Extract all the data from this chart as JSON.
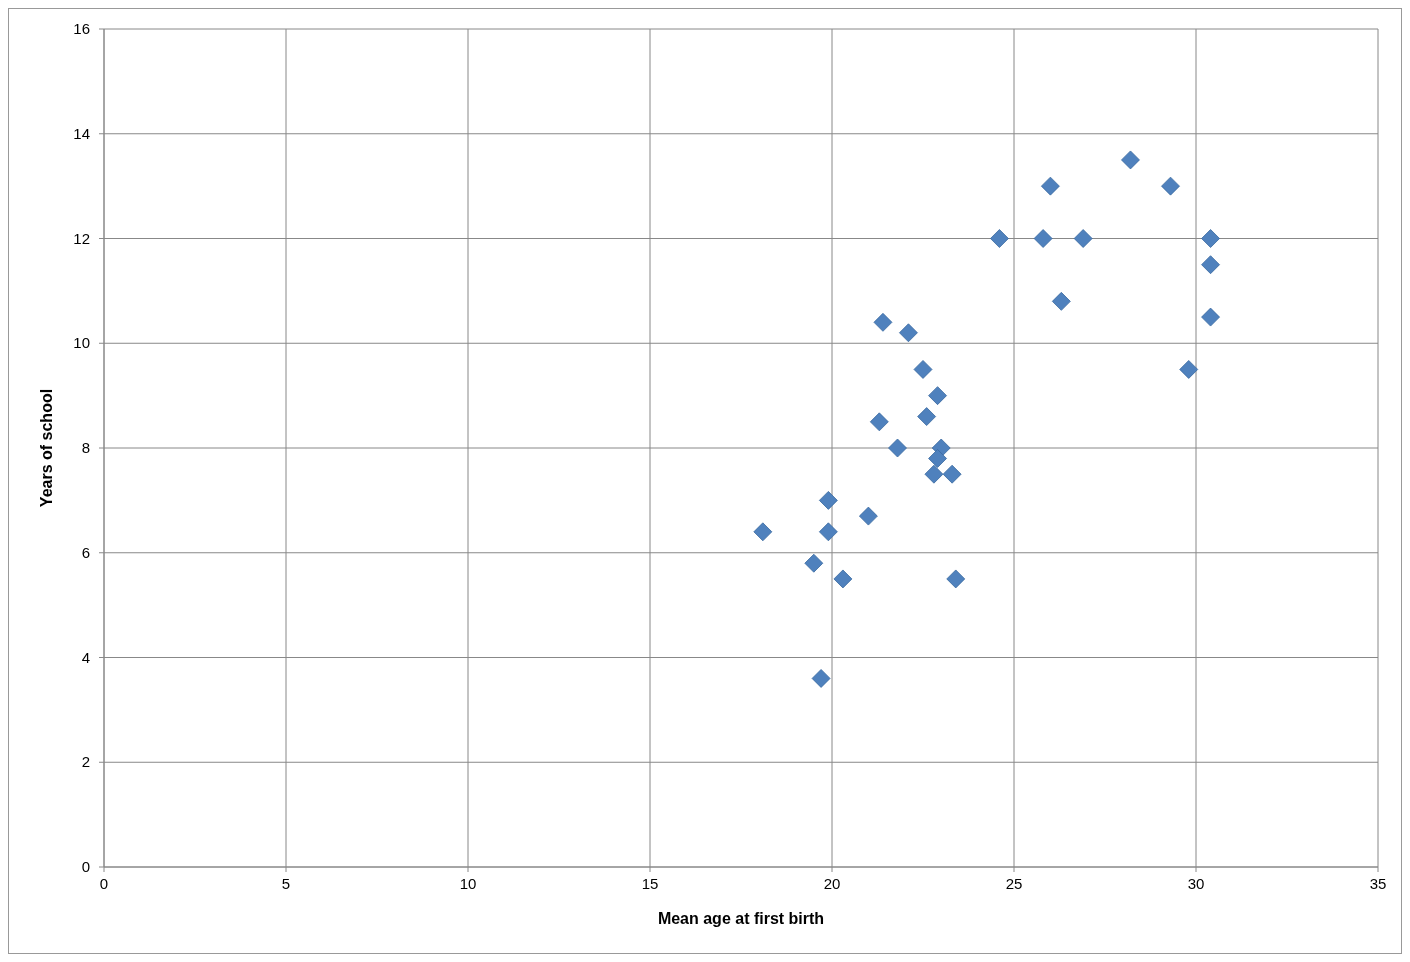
{
  "chart_data": {
    "type": "scatter",
    "xlabel": "Mean age at first birth",
    "ylabel": "Years of school",
    "x": [
      18.1,
      19.9,
      19.9,
      19.5,
      20.3,
      19.7,
      21.0,
      21.3,
      21.4,
      21.8,
      22.1,
      22.5,
      22.6,
      22.9,
      23.0,
      22.9,
      22.8,
      23.3,
      23.4,
      24.6,
      25.8,
      26.0,
      26.3,
      26.9,
      28.2,
      29.3,
      30.4,
      30.4,
      30.4,
      29.8
    ],
    "series": [
      {
        "color": "#4f81bd",
        "values": [
          6.4,
          7.0,
          6.4,
          5.8,
          5.5,
          3.6,
          6.7,
          8.5,
          10.4,
          8.0,
          10.2,
          9.5,
          8.6,
          9.0,
          8.0,
          7.8,
          7.5,
          7.5,
          5.5,
          12.0,
          12.0,
          13.0,
          10.8,
          12.0,
          13.5,
          13.0,
          12.0,
          11.5,
          10.5,
          9.5
        ]
      }
    ],
    "xlim": [
      0,
      35
    ],
    "xticks": [
      0,
      5,
      10,
      15,
      20,
      25,
      30,
      35
    ],
    "ylim": [
      0,
      16
    ],
    "yticks": [
      0,
      2,
      4,
      6,
      8,
      10,
      12,
      14,
      16
    ],
    "grid": true,
    "marker": "diamond"
  }
}
